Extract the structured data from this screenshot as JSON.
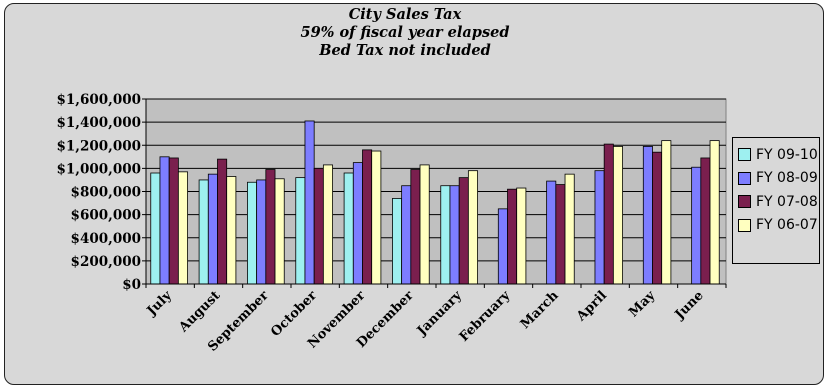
{
  "chart_data": {
    "type": "bar",
    "title": "City Sales Tax",
    "subtitle_lines": [
      "59% of fiscal year elapsed",
      "Bed Tax not included"
    ],
    "categories": [
      "July",
      "August",
      "September",
      "October",
      "November",
      "December",
      "January",
      "February",
      "March",
      "April",
      "May",
      "June"
    ],
    "series": [
      {
        "name": "FY 09-10",
        "color": "#9ef0f0",
        "values": [
          960000,
          900000,
          880000,
          920000,
          960000,
          740000,
          850000,
          null,
          null,
          null,
          null,
          null
        ]
      },
      {
        "name": "FY 08-09",
        "color": "#7d7dff",
        "values": [
          1100000,
          950000,
          900000,
          1410000,
          1050000,
          850000,
          850000,
          650000,
          890000,
          980000,
          1190000,
          1010000
        ]
      },
      {
        "name": "FY 07-08",
        "color": "#7a1f4e",
        "values": [
          1090000,
          1080000,
          990000,
          1000000,
          1160000,
          990000,
          920000,
          820000,
          860000,
          1210000,
          1140000,
          1090000
        ]
      },
      {
        "name": "FY 06-07",
        "color": "#ffffc0",
        "values": [
          970000,
          930000,
          910000,
          1030000,
          1150000,
          1030000,
          980000,
          830000,
          950000,
          1190000,
          1240000,
          1240000
        ]
      }
    ],
    "ylim": [
      0,
      1600000
    ],
    "ytick_labels": [
      "$0",
      "$200,000",
      "$400,000",
      "$600,000",
      "$800,000",
      "$1,000,000",
      "$1,200,000",
      "$1,400,000",
      "$1,600,000"
    ],
    "xlabel": "",
    "ylabel": "",
    "grid": true,
    "legend_position": "right",
    "plot_background": "#c0c0c0",
    "chart_background": "#d8d8d8"
  }
}
